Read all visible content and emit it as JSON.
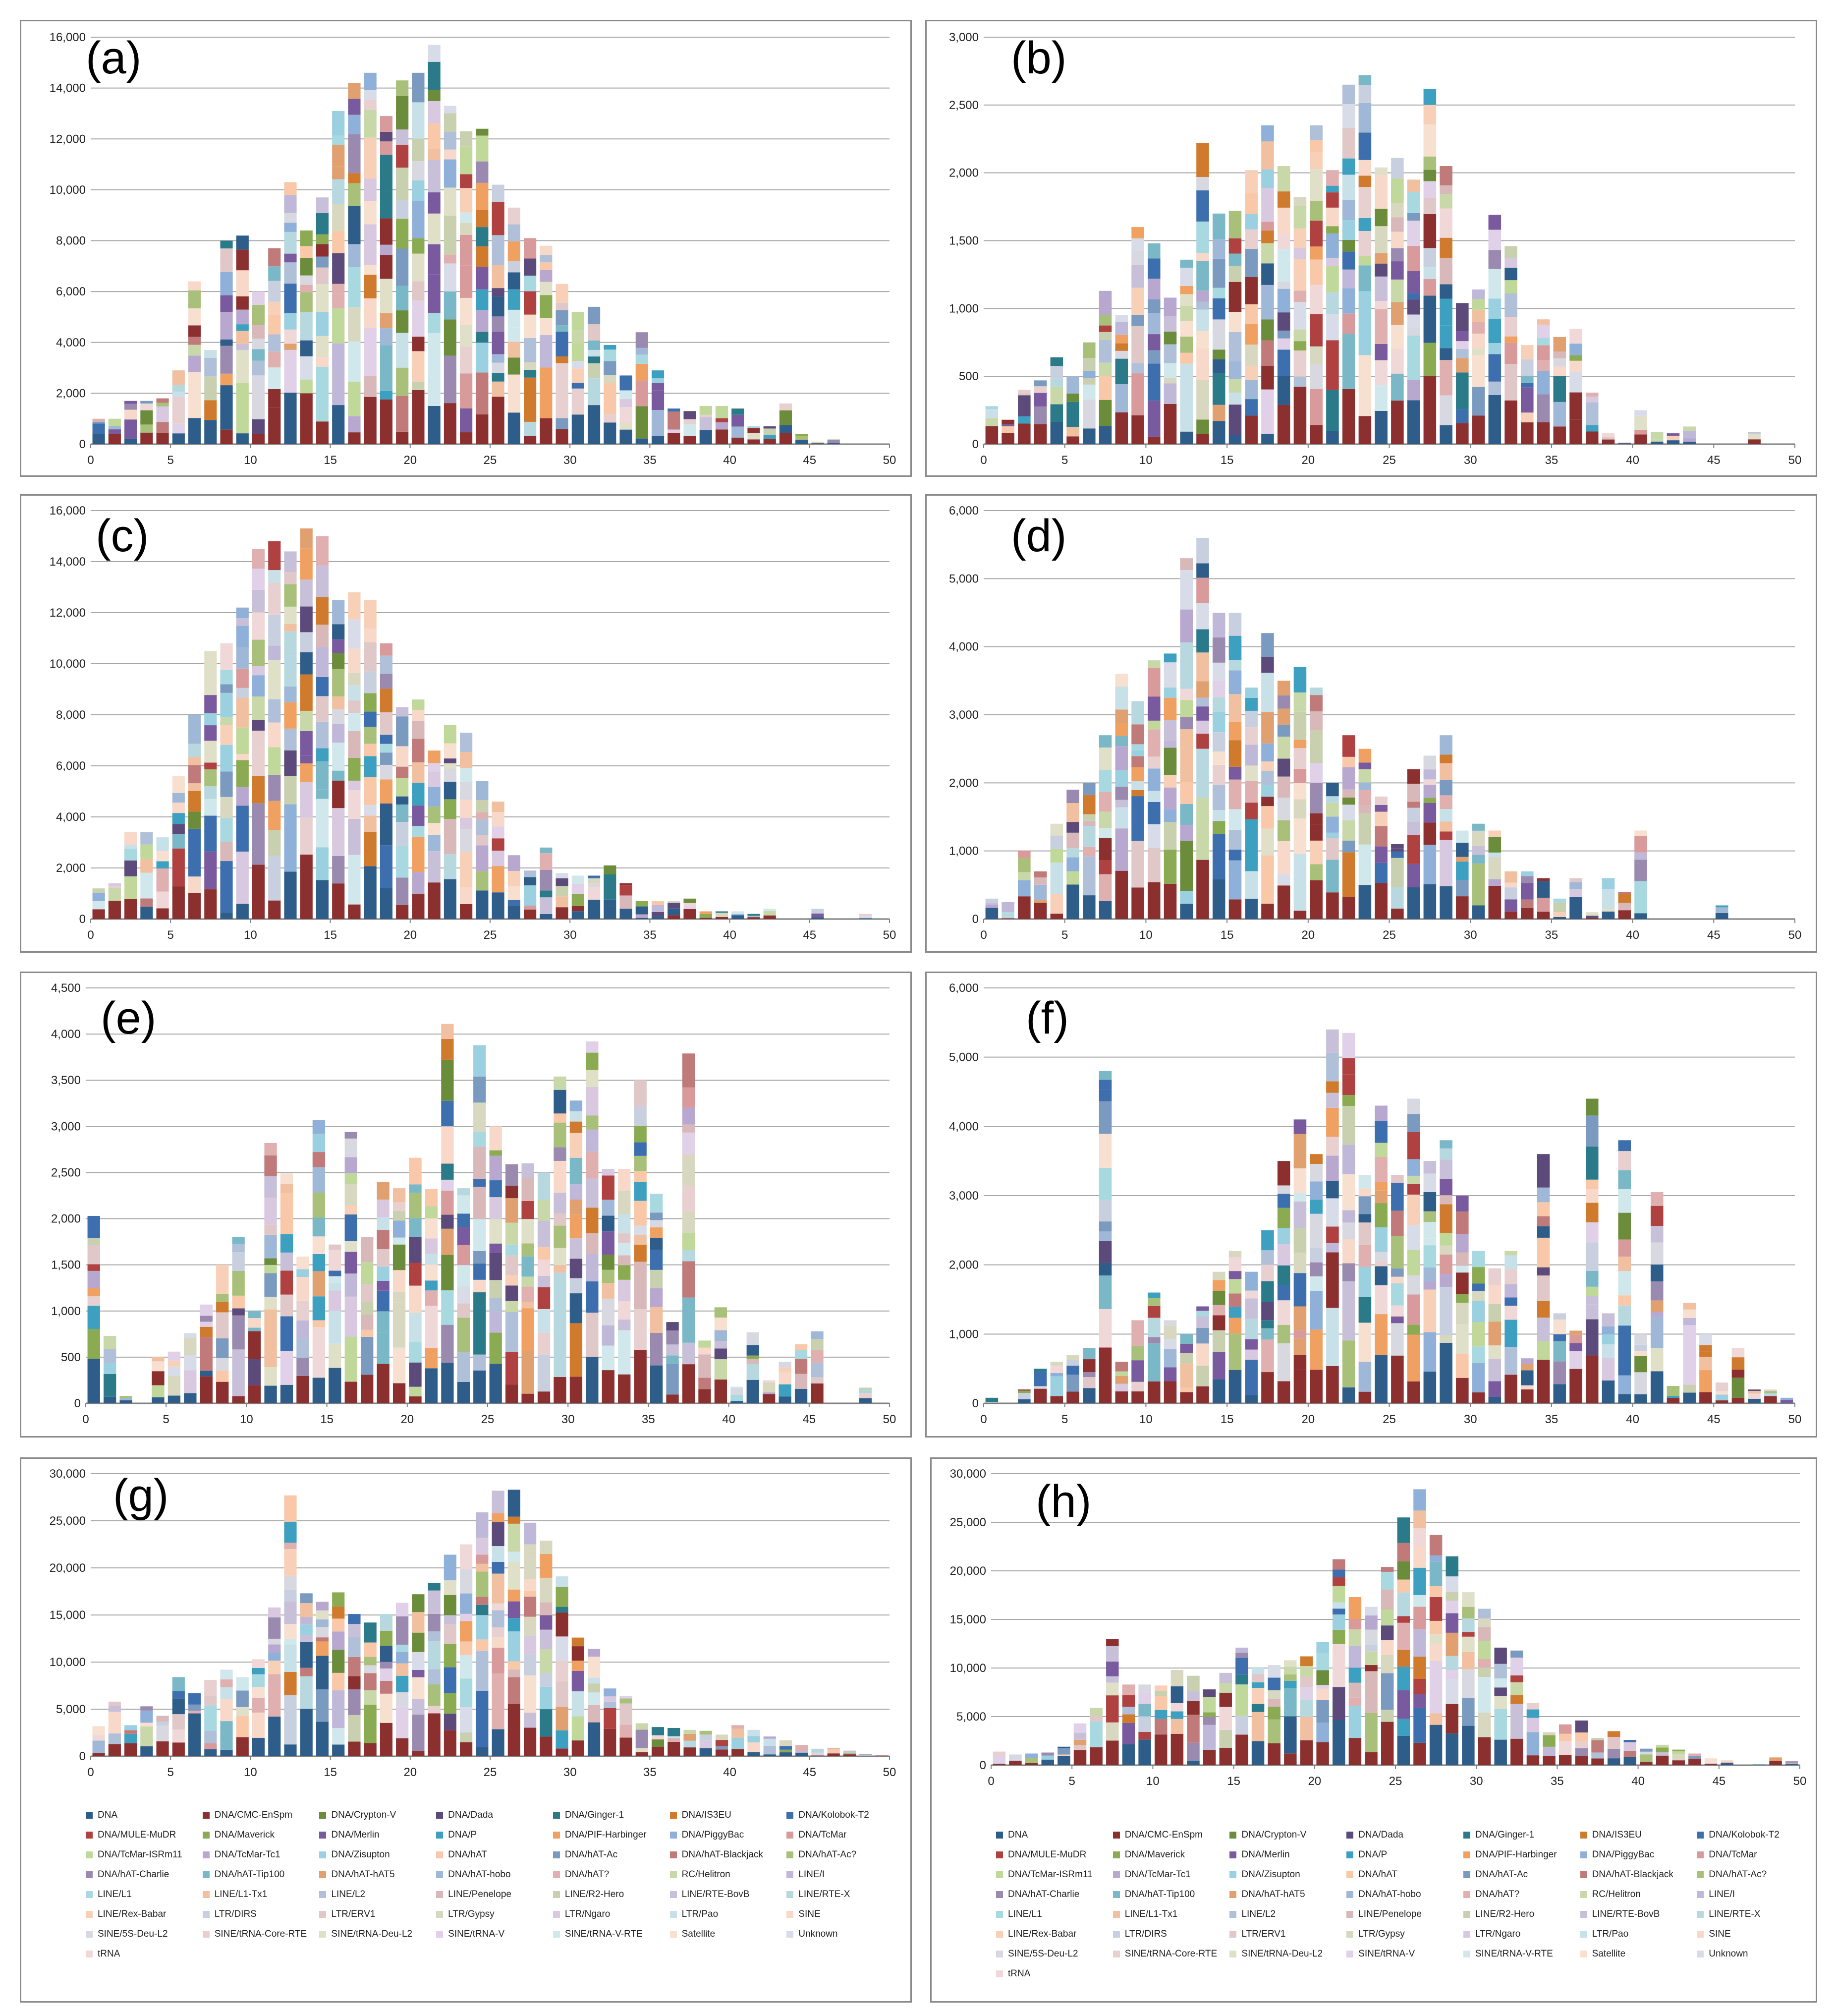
{
  "colors": [
    "#2e5d8a",
    "#8c2f2f",
    "#6b8c3a",
    "#5b4a7a",
    "#2b7a8a",
    "#d07a2e",
    "#3d6fae",
    "#b04141",
    "#8aab52",
    "#7a5a9e",
    "#3ea0c0",
    "#f0a060",
    "#8fb0d8",
    "#d89a9a",
    "#c0d89a",
    "#b8a8d0",
    "#9ad0e0",
    "#f8c8a8",
    "#7a9abf",
    "#c07a7a",
    "#a8c07a",
    "#9a8ab0",
    "#7ab8c8",
    "#e0a070",
    "#a0b8d8",
    "#e0b0b0",
    "#c8d8a8",
    "#c0b8d8",
    "#a8d8e0",
    "#f0c0a0",
    "#b0c0d8",
    "#d8b8b8",
    "#c8d0b0",
    "#c8c0d8",
    "#b8d8e0",
    "#f8d0b8",
    "#c8d0e0",
    "#e0c8c8",
    "#d8d8c0",
    "#d8c8e0",
    "#c8e0e8",
    "#f8d8c8",
    "#d8d8e0",
    "#e8d0d0",
    "#e0e0c8",
    "#e0d0e8",
    "#d0e8ec",
    "#f8e0d0",
    "#d8dce8",
    "#f0d8d8"
  ],
  "legend_items": [
    "DNA",
    "DNA/CMC-EnSpm",
    "DNA/Crypton-V",
    "DNA/Dada",
    "DNA/Ginger-1",
    "DNA/IS3EU",
    "DNA/Kolobok-T2",
    "DNA/MULE-MuDR",
    "DNA/Maverick",
    "DNA/Merlin",
    "DNA/P",
    "DNA/PIF-Harbinger",
    "DNA/PiggyBac",
    "DNA/TcMar",
    "DNA/TcMar-ISRm11",
    "DNA/TcMar-Tc1",
    "DNA/Zisupton",
    "DNA/hAT",
    "DNA/hAT-Ac",
    "DNA/hAT-Blackjack",
    "DNA/hAT-Ac?",
    "DNA/hAT-Charlie",
    "DNA/hAT-Tip100",
    "DNA/hAT-hAT5",
    "DNA/hAT-hobo",
    "DNA/hAT?",
    "RC/Helitron",
    "LINE/I",
    "LINE/L1",
    "LINE/L1-Tx1",
    "LINE/L2",
    "LINE/Penelope",
    "LINE/R2-Hero",
    "LINE/RTE-BovB",
    "LINE/RTE-X",
    "LINE/Rex-Babar",
    "LTR/DIRS",
    "LTR/ERV1",
    "LTR/Gypsy",
    "LTR/Ngaro",
    "LTR/Pao",
    "SINE",
    "SINE/5S-Deu-L2",
    "SINE/tRNA-Core-RTE",
    "SINE/tRNA-Deu-L2",
    "SINE/tRNA-V",
    "SINE/tRNA-V-RTE",
    "Satellite",
    "Unknown",
    "tRNA"
  ],
  "chart_data": [
    {
      "type": "bar",
      "stacked": true,
      "label": "(a)",
      "xlim": [
        0,
        50
      ],
      "ylim": [
        0,
        16000
      ],
      "yticks": [
        "0",
        "2,000",
        "4,000",
        "6,000",
        "8,000",
        "10,000",
        "12,000",
        "14,000",
        "16,000"
      ],
      "xticks": [
        "0",
        "5",
        "10",
        "15",
        "20",
        "25",
        "30",
        "35",
        "40",
        "45",
        "50"
      ],
      "totals": [
        1000,
        1000,
        1700,
        1700,
        1800,
        2900,
        6400,
        3700,
        8000,
        8200,
        6000,
        7700,
        10300,
        8400,
        9700,
        13100,
        14200,
        14600,
        12900,
        14300,
        14600,
        15700,
        13300,
        12300,
        12400,
        10200,
        9300,
        8100,
        7800,
        6300,
        5200,
        5400,
        3900,
        2700,
        4400,
        2900,
        1400,
        1300,
        1500,
        1500,
        1400,
        700,
        700,
        1600,
        400,
        100,
        200,
        0,
        0,
        0
      ]
    },
    {
      "type": "bar",
      "stacked": true,
      "label": "(b)",
      "xlim": [
        0,
        50
      ],
      "ylim": [
        0,
        3000
      ],
      "yticks": [
        "0",
        "500",
        "1,000",
        "1,500",
        "2,000",
        "2,500",
        "3,000"
      ],
      "xticks": [
        "0",
        "5",
        "10",
        "15",
        "20",
        "25",
        "30",
        "35",
        "40",
        "45",
        "50"
      ],
      "totals": [
        280,
        180,
        400,
        470,
        640,
        500,
        750,
        1130,
        950,
        1600,
        1480,
        1080,
        1360,
        2220,
        1700,
        1720,
        2020,
        2350,
        2050,
        1820,
        2350,
        2020,
        2650,
        2720,
        2040,
        2110,
        1950,
        2620,
        2050,
        1040,
        1140,
        1690,
        1460,
        730,
        920,
        790,
        850,
        380,
        80,
        10,
        250,
        90,
        80,
        130,
        0,
        0,
        0,
        90,
        0,
        0
      ]
    },
    {
      "type": "bar",
      "stacked": true,
      "label": "(c)",
      "xlim": [
        0,
        50
      ],
      "ylim": [
        0,
        16000
      ],
      "yticks": [
        "0",
        "2,000",
        "4,000",
        "6,000",
        "8,000",
        "10,000",
        "12,000",
        "14,000",
        "16,000"
      ],
      "xticks": [
        "0",
        "5",
        "10",
        "15",
        "20",
        "25",
        "30",
        "35",
        "40",
        "45",
        "50"
      ],
      "totals": [
        1200,
        1400,
        3400,
        3400,
        3200,
        5600,
        8000,
        10500,
        10800,
        12200,
        14500,
        14800,
        14400,
        15300,
        15000,
        12500,
        12800,
        12500,
        10800,
        8300,
        8600,
        6600,
        7600,
        7300,
        5400,
        4600,
        2500,
        1900,
        2800,
        1800,
        1700,
        1700,
        2100,
        1400,
        700,
        700,
        700,
        800,
        300,
        300,
        300,
        200,
        400,
        0,
        0,
        400,
        0,
        0,
        200,
        0
      ]
    },
    {
      "type": "bar",
      "stacked": true,
      "label": "(d)",
      "xlim": [
        0,
        50
      ],
      "ylim": [
        0,
        6000
      ],
      "yticks": [
        "0",
        "1,000",
        "2,000",
        "3,000",
        "4,000",
        "5,000",
        "6,000"
      ],
      "xticks": [
        "0",
        "5",
        "10",
        "15",
        "20",
        "25",
        "30",
        "35",
        "40",
        "45",
        "50"
      ],
      "totals": [
        300,
        250,
        1000,
        700,
        1400,
        1900,
        2000,
        2700,
        3600,
        3200,
        3800,
        3900,
        5300,
        5600,
        4500,
        4500,
        3400,
        4200,
        3500,
        3700,
        3400,
        2000,
        2700,
        2500,
        1800,
        1100,
        2200,
        2400,
        2700,
        1300,
        1400,
        1300,
        700,
        700,
        600,
        300,
        600,
        100,
        600,
        400,
        1300,
        0,
        0,
        0,
        0,
        200,
        0,
        0,
        0,
        0
      ]
    },
    {
      "type": "bar",
      "stacked": true,
      "label": "(e)",
      "xlim": [
        0,
        50
      ],
      "ylim": [
        0,
        4500
      ],
      "yticks": [
        "0",
        "500",
        "1,000",
        "1,500",
        "2,000",
        "2,500",
        "3,000",
        "3,500",
        "4,000",
        "4,500"
      ],
      "xticks": [
        "0",
        "5",
        "10",
        "15",
        "20",
        "25",
        "30",
        "35",
        "40",
        "45",
        "50"
      ],
      "totals": [
        2030,
        730,
        80,
        0,
        500,
        560,
        760,
        1070,
        1500,
        1800,
        1000,
        2820,
        2490,
        1590,
        3070,
        1720,
        2940,
        1800,
        2400,
        2330,
        2660,
        2320,
        4110,
        2330,
        3880,
        3000,
        2590,
        2600,
        2500,
        3540,
        3280,
        3920,
        2540,
        2540,
        3500,
        2270,
        880,
        3790,
        680,
        1040,
        180,
        770,
        250,
        450,
        640,
        780,
        0,
        0,
        170,
        0
      ]
    },
    {
      "type": "bar",
      "stacked": true,
      "label": "(f)",
      "xlim": [
        0,
        50
      ],
      "ylim": [
        0,
        6000
      ],
      "yticks": [
        "0",
        "1,000",
        "2,000",
        "3,000",
        "4,000",
        "5,000",
        "6,000"
      ],
      "xticks": [
        "0",
        "5",
        "10",
        "15",
        "20",
        "25",
        "30",
        "35",
        "40",
        "45",
        "50"
      ],
      "totals": [
        80,
        0,
        200,
        500,
        600,
        700,
        800,
        4800,
        600,
        1200,
        1600,
        1200,
        1000,
        1400,
        1900,
        2200,
        1900,
        2500,
        3500,
        4100,
        3600,
        5400,
        5350,
        3300,
        4300,
        3300,
        4400,
        3500,
        3800,
        3000,
        2200,
        1950,
        2200,
        650,
        3600,
        1300,
        1050,
        4400,
        1300,
        3800,
        1000,
        3050,
        250,
        1450,
        1000,
        300,
        800,
        200,
        200,
        80
      ]
    },
    {
      "type": "bar",
      "stacked": true,
      "label": "(g)",
      "xlim": [
        0,
        50
      ],
      "ylim": [
        0,
        30000
      ],
      "yticks": [
        "0",
        "5,000",
        "10,000",
        "15,000",
        "20,000",
        "25,000",
        "30,000"
      ],
      "xticks": [
        "0",
        "5",
        "10",
        "15",
        "20",
        "25",
        "30",
        "35",
        "40",
        "45",
        "50"
      ],
      "totals": [
        3200,
        5800,
        3300,
        5300,
        4300,
        8400,
        6700,
        8100,
        9200,
        8400,
        10300,
        15800,
        27700,
        17300,
        16400,
        17400,
        15100,
        14200,
        15100,
        16300,
        17200,
        18400,
        21400,
        22500,
        25900,
        28200,
        28300,
        24800,
        22900,
        19100,
        12600,
        11400,
        7200,
        6400,
        3500,
        3100,
        3000,
        2800,
        2700,
        2300,
        3300,
        2800,
        2100,
        1700,
        1200,
        800,
        900,
        600,
        200,
        100
      ]
    },
    {
      "type": "bar",
      "stacked": true,
      "label": "(h)",
      "xlim": [
        0,
        50
      ],
      "ylim": [
        0,
        30000
      ],
      "yticks": [
        "0",
        "5,000",
        "10,000",
        "15,000",
        "20,000",
        "25,000",
        "30,000"
      ],
      "xticks": [
        "0",
        "5",
        "10",
        "15",
        "20",
        "25",
        "30",
        "35",
        "40",
        "45",
        "50"
      ],
      "totals": [
        1400,
        1100,
        1200,
        1300,
        1900,
        4300,
        5900,
        13000,
        8300,
        8300,
        8200,
        9800,
        9200,
        7800,
        9500,
        12100,
        10100,
        10300,
        10800,
        11200,
        12700,
        21200,
        17300,
        16300,
        20400,
        25500,
        28400,
        23700,
        21500,
        17800,
        16100,
        12100,
        11800,
        6400,
        3400,
        4200,
        4600,
        2800,
        3500,
        2600,
        1700,
        2100,
        1600,
        1200,
        700,
        500,
        0,
        100,
        800,
        400
      ]
    }
  ]
}
